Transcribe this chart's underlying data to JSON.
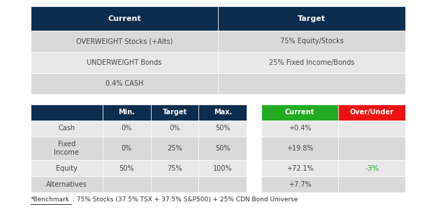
{
  "top_table": {
    "headers": [
      "Current",
      "Target"
    ],
    "rows": [
      [
        "OVERWEIGHT Stocks (+Alts)",
        "75% Equity/Stocks"
      ],
      [
        "UNDERWEIGHT Bonds",
        "25% Fixed Income/Bonds"
      ],
      [
        "0.4% CASH",
        ""
      ]
    ],
    "header_bg": "#0d2d4e",
    "header_fg": "#ffffff",
    "row_bg_odd": "#d9d9d9",
    "row_bg_even": "#e8e8e8"
  },
  "bottom_table": {
    "col_headers": [
      "",
      "Min.",
      "Target",
      "Max.",
      "",
      "Current",
      "Over/Under"
    ],
    "rows": [
      [
        "Cash",
        "0%",
        "0%",
        "50%",
        "",
        "+0.4%",
        ""
      ],
      [
        "Fixed\nIncome",
        "0%",
        "25%",
        "50%",
        "",
        "+19.8%",
        ""
      ],
      [
        "Equity",
        "50%",
        "75%",
        "100%",
        "",
        "+72.1%",
        "-3%"
      ],
      [
        "Alternatives",
        "",
        "",
        "",
        "",
        "+7.7%",
        ""
      ]
    ],
    "header_bg": "#0d2d4e",
    "header_fg": "#ffffff",
    "current_header_bg": "#22aa22",
    "over_under_header_bg": "#ee1111",
    "row_bg_odd": "#e8e8e8",
    "row_bg_even": "#d9d9d9",
    "equity_over_under_color": "#22aa22"
  },
  "footnote_part1": "*Benchmark",
  "footnote_part2": ": 75% Stocks (37.5% TSX + 37.5% S&P500) + 25% CDN Bond Universe",
  "bg_color": "#ffffff"
}
